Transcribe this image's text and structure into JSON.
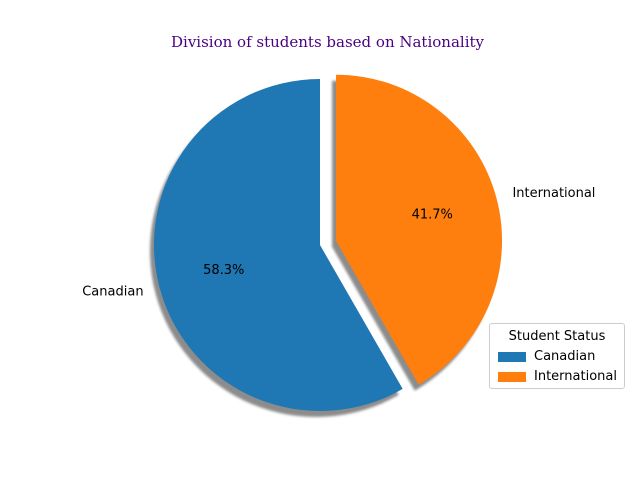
{
  "chart_data": {
    "type": "pie",
    "title": "Division of students based on Nationality",
    "categories": [
      "Canadian",
      "International"
    ],
    "values": [
      58.3,
      41.7
    ],
    "labels": [
      "Canadian",
      "International"
    ],
    "autopct": [
      "58.3%",
      "41.7%"
    ],
    "colors": [
      "#1f77b4",
      "#ff7f0e"
    ],
    "explode": [
      0,
      0.1
    ],
    "start_angle_deg": 90,
    "counterclockwise": true,
    "shadow": true,
    "legend": {
      "title": "Student Status",
      "entries": [
        "Canadian",
        "International"
      ],
      "placement": "lower-right"
    },
    "title_color": "#4b0082"
  }
}
